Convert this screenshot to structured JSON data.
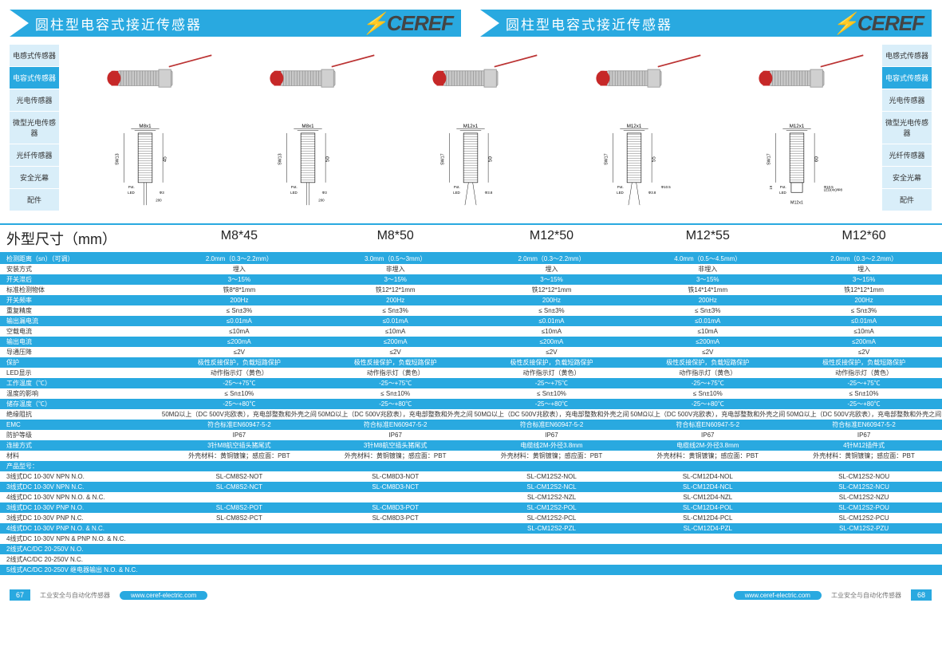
{
  "header": {
    "title": "圆柱型电容式接近传感器",
    "brand_prefix": "⚡",
    "brand_text": "CEREF"
  },
  "sidebar": {
    "items": [
      {
        "label": "电感式传感器",
        "active": false
      },
      {
        "label": "电容式传感器",
        "active": true
      },
      {
        "label": "光电传感器",
        "active": false
      },
      {
        "label": "微型光电传感器",
        "active": false
      },
      {
        "label": "光纤传感器",
        "active": false
      },
      {
        "label": "安全光幕",
        "active": false
      },
      {
        "label": "配件",
        "active": false
      }
    ]
  },
  "section": {
    "label": "外型尺寸（mm）",
    "models": [
      "M8*45",
      "M8*50",
      "M12*50",
      "M12*55",
      "M12*60"
    ]
  },
  "diagrams": [
    {
      "thread": "M8x1",
      "sw": "SW13",
      "body": "45",
      "led_d": "Φ3",
      "back": "200",
      "front": "4/5"
    },
    {
      "thread": "M8x1",
      "sw": "SW13",
      "body": "50",
      "led_d": "Φ3",
      "back": "200",
      "front": "4/5"
    },
    {
      "thread": "M12x1",
      "sw": "SW17",
      "body": "50",
      "led_d": "Φ3.8",
      "back": "",
      "front": "4/5"
    },
    {
      "thread": "M12x1",
      "sw": "SW17",
      "body": "55",
      "led_d": "Φ3.8",
      "pot_d": "Φ10.5",
      "front": "4/5"
    },
    {
      "thread": "M12x1",
      "sw": "SW17",
      "body": "60",
      "led_d": "",
      "pot_d": "Φ10.5",
      "front": "4/5",
      "conn": "M12x1",
      "conn_h": "19",
      "led4x": "LED(4x)/Φ8"
    }
  ],
  "specs": [
    {
      "label": "检测距离（sn）（可调）",
      "stripe": "blue",
      "values": [
        "2.0mm（0.3～2.2mm）",
        "3.0mm（0.5～3mm）",
        "2.0mm（0.3～2.2mm）",
        "4.0mm（0.5～4.5mm）",
        "2.0mm（0.3～2.2mm）"
      ]
    },
    {
      "label": "安装方式",
      "stripe": "white",
      "values": [
        "埋入",
        "非埋入",
        "埋入",
        "非埋入",
        "埋入"
      ]
    },
    {
      "label": "开关滞后",
      "stripe": "blue",
      "values": [
        "3～15%",
        "3～15%",
        "3～15%",
        "3～15%",
        "3～15%"
      ]
    },
    {
      "label": "标准检测物体",
      "stripe": "white",
      "values": [
        "铁8*8*1mm",
        "铁12*12*1mm",
        "铁12*12*1mm",
        "铁14*14*1mm",
        "铁12*12*1mm"
      ]
    },
    {
      "label": "开关频率",
      "stripe": "blue",
      "values": [
        "200Hz",
        "200Hz",
        "200Hz",
        "200Hz",
        "200Hz"
      ]
    },
    {
      "label": "重复精度",
      "stripe": "white",
      "values": [
        "≤ Sn±3%",
        "≤ Sn±3%",
        "≤ Sn±3%",
        "≤ Sn±3%",
        "≤ Sn±3%"
      ]
    },
    {
      "label": "输出漏电流",
      "stripe": "blue",
      "values": [
        "≤0.01mA",
        "≤0.01mA",
        "≤0.01mA",
        "≤0.01mA",
        "≤0.01mA"
      ]
    },
    {
      "label": "空载电流",
      "stripe": "white",
      "values": [
        "≤10mA",
        "≤10mA",
        "≤10mA",
        "≤10mA",
        "≤10mA"
      ]
    },
    {
      "label": "输出电流",
      "stripe": "blue",
      "values": [
        "≤200mA",
        "≤200mA",
        "≤200mA",
        "≤200mA",
        "≤200mA"
      ]
    },
    {
      "label": "导通压降",
      "stripe": "white",
      "values": [
        "≤2V",
        "≤2V",
        "≤2V",
        "≤2V",
        "≤2V"
      ]
    },
    {
      "label": "保护",
      "stripe": "blue",
      "values": [
        "极性反接保护，负载短路保护",
        "极性反接保护，负载短路保护",
        "极性反接保护，负载短路保护",
        "极性反接保护，负载短路保护",
        "极性反接保护，负载短路保护"
      ]
    },
    {
      "label": "LED显示",
      "stripe": "white",
      "values": [
        "动作指示灯（黄色）",
        "动作指示灯（黄色）",
        "动作指示灯（黄色）",
        "动作指示灯（黄色）",
        "动作指示灯（黄色）"
      ]
    },
    {
      "label": "工作温度（℃）",
      "stripe": "blue",
      "values": [
        "-25～+75℃",
        "-25～+75℃",
        "-25～+75℃",
        "-25～+75℃",
        "-25～+75℃"
      ]
    },
    {
      "label": "温度的影响",
      "stripe": "white",
      "values": [
        "≤ Sn±10%",
        "≤ Sn±10%",
        "≤ Sn±10%",
        "≤ Sn±10%",
        "≤ Sn±10%"
      ]
    },
    {
      "label": "储存温度（℃）",
      "stripe": "blue",
      "values": [
        "-25～+80℃",
        "-25～+80℃",
        "-25～+80℃",
        "-25～+80℃",
        "-25～+80℃"
      ]
    },
    {
      "label": "绝缘阻抗",
      "stripe": "white",
      "values": [
        "50MΩ以上（DC 500V兆欧表），充电部整数和外壳之间",
        "50MΩ以上（DC 500V兆欧表），充电部整数和外壳之间",
        "50MΩ以上（DC 500V兆欧表），充电部整数和外壳之间",
        "50MΩ以上（DC 500V兆欧表），充电部整数和外壳之间",
        "50MΩ以上（DC 500V兆欧表），充电部整数和外壳之间"
      ]
    },
    {
      "label": "EMC",
      "stripe": "blue",
      "values": [
        "符合标准EN60947-5-2",
        "符合标准EN60947-5-2",
        "符合标准EN60947-5-2",
        "符合标准EN60947-5-2",
        "符合标准EN60947-5-2"
      ]
    },
    {
      "label": "防护等级",
      "stripe": "white",
      "values": [
        "IP67",
        "IP67",
        "IP67",
        "IP67",
        "IP67"
      ]
    },
    {
      "label": "连接方式",
      "stripe": "blue",
      "values": [
        "3针M8航空插头猪尾式",
        "3针M8航空插头猪尾式",
        "电缆线2M-外径3.8mm",
        "电缆线2M-外径3.8mm",
        "4针M12插件式"
      ]
    },
    {
      "label": "材料",
      "stripe": "white",
      "values": [
        "外壳材料：黄铜镀镍；感应面：PBT",
        "外壳材料：黄铜镀镍；感应面：PBT",
        "外壳材料：黄铜镀镍；感应面：PBT",
        "外壳材料：黄铜镀镍；感应面：PBT",
        "外壳材料：黄铜镀镍；感应面：PBT"
      ]
    },
    {
      "label": "产品型号：",
      "stripe": "blue",
      "values": [
        "",
        "",
        "",
        "",
        ""
      ]
    },
    {
      "label": "3线式DC 10-30V NPN N.O.",
      "stripe": "white",
      "values": [
        "SL-CM8S2-NOT",
        "SL-CM8D3-NOT",
        "SL-CM12S2-NOL",
        "SL-CM12D4-NOL",
        "SL-CM12S2-NOU"
      ]
    },
    {
      "label": "3线式DC 10-30V NPN N.C.",
      "stripe": "blue",
      "values": [
        "SL-CM8S2-NCT",
        "SL-CM8D3-NCT",
        "SL-CM12S2-NCL",
        "SL-CM12D4-NCL",
        "SL-CM12S2-NCU"
      ]
    },
    {
      "label": "4线式DC 10-30V NPN N.O. & N.C.",
      "stripe": "white",
      "values": [
        "",
        "",
        "SL-CM12S2-NZL",
        "SL-CM12D4-NZL",
        "SL-CM12S2-NZU"
      ]
    },
    {
      "label": "3线式DC 10-30V PNP N.O.",
      "stripe": "blue",
      "values": [
        "SL-CM8S2-POT",
        "SL-CM8D3-POT",
        "SL-CM12S2-POL",
        "SL-CM12D4-POL",
        "SL-CM12S2-POU"
      ]
    },
    {
      "label": "3线式DC 10-30V PNP N.C.",
      "stripe": "white",
      "values": [
        "SL-CM8S2-PCT",
        "SL-CM8D3-PCT",
        "SL-CM12S2-PCL",
        "SL-CM12D4-PCL",
        "SL-CM12S2-PCU"
      ]
    },
    {
      "label": "4线式DC 10-30V PNP N.O. & N.C.",
      "stripe": "blue",
      "values": [
        "",
        "",
        "SL-CM12S2-PZL",
        "SL-CM12D4-PZL",
        "SL-CM12S2-PZU"
      ]
    },
    {
      "label": "4线式DC 10-30V NPN & PNP N.O. & N.C.",
      "stripe": "white",
      "values": [
        "",
        "",
        "",
        "",
        ""
      ]
    },
    {
      "label": "2线式AC/DC 20-250V N.O.",
      "stripe": "blue",
      "values": [
        "",
        "",
        "",
        "",
        ""
      ]
    },
    {
      "label": "2线式AC/DC 20-250V N.C.",
      "stripe": "white",
      "values": [
        "",
        "",
        "",
        "",
        ""
      ]
    },
    {
      "label": "5线式AC/DC 20-250V 继电器输出 N.O. & N.C.",
      "stripe": "blue",
      "values": [
        "",
        "",
        "",
        "",
        ""
      ]
    }
  ],
  "footer": {
    "page_left": "67",
    "page_right": "68",
    "text": "工业安全与自动化传感器",
    "url": "www.ceref-electric.com"
  },
  "colors": {
    "primary": "#29a9e0",
    "sidebar_bg": "#d9eef9",
    "sensor_tip": "#c62828",
    "sensor_body": "#b8b8b8"
  }
}
